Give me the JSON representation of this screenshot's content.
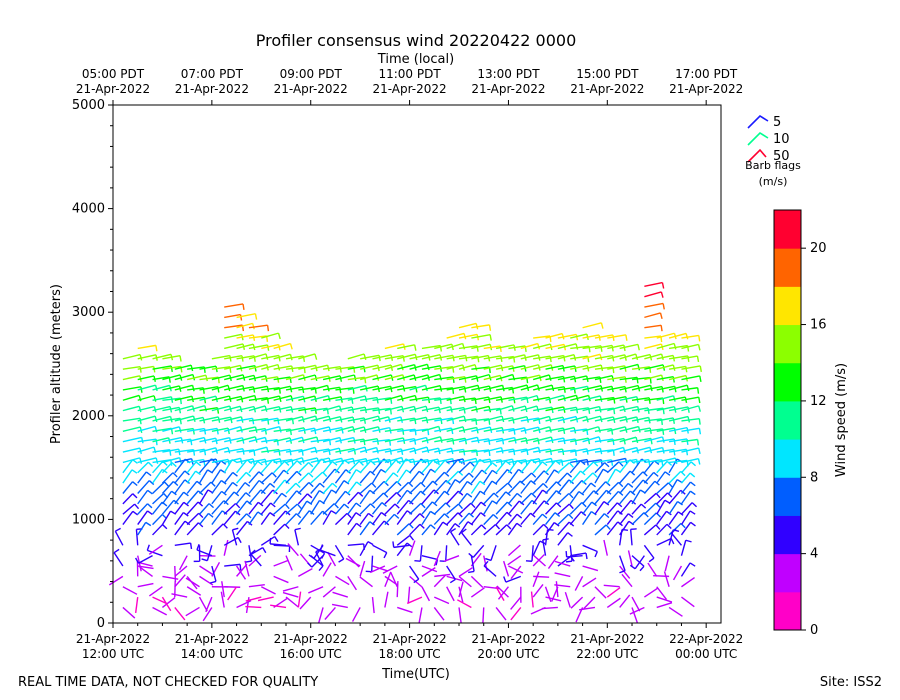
{
  "chart_data": {
    "type": "wind-barb-profile",
    "title": "Profiler consensus wind 20220422 0000",
    "top_axis_label": "Time (local)",
    "xlabel": "Time(UTC)",
    "ylabel": "Profiler altitude (meters)",
    "ylim": [
      0,
      5000
    ],
    "xlim_hours_utc": [
      12.0,
      24.3
    ],
    "y_ticks": [
      0,
      1000,
      2000,
      3000,
      4000,
      5000
    ],
    "y_tick_labels": [
      "0",
      "1000",
      "2000",
      "3000",
      "4000",
      "5000"
    ],
    "bottom_ticks": [
      {
        "hour": 12,
        "line1": "21-Apr-2022",
        "line2": "12:00 UTC"
      },
      {
        "hour": 14,
        "line1": "21-Apr-2022",
        "line2": "14:00 UTC"
      },
      {
        "hour": 16,
        "line1": "21-Apr-2022",
        "line2": "16:00 UTC"
      },
      {
        "hour": 18,
        "line1": "21-Apr-2022",
        "line2": "18:00 UTC"
      },
      {
        "hour": 20,
        "line1": "21-Apr-2022",
        "line2": "20:00 UTC"
      },
      {
        "hour": 22,
        "line1": "21-Apr-2022",
        "line2": "22:00 UTC"
      },
      {
        "hour": 24,
        "line1": "22-Apr-2022",
        "line2": "00:00 UTC"
      }
    ],
    "top_ticks": [
      {
        "hour": 12,
        "line1": "05:00 PDT",
        "line2": "21-Apr-2022"
      },
      {
        "hour": 14,
        "line1": "07:00 PDT",
        "line2": "21-Apr-2022"
      },
      {
        "hour": 16,
        "line1": "09:00 PDT",
        "line2": "21-Apr-2022"
      },
      {
        "hour": 18,
        "line1": "11:00 PDT",
        "line2": "21-Apr-2022"
      },
      {
        "hour": 20,
        "line1": "13:00 PDT",
        "line2": "21-Apr-2022"
      },
      {
        "hour": 22,
        "line1": "15:00 PDT",
        "line2": "21-Apr-2022"
      },
      {
        "hour": 24,
        "line1": "17:00 PDT",
        "line2": "21-Apr-2022"
      }
    ],
    "colorbar": {
      "label": "Wind speed (m/s)",
      "range": [
        0,
        22
      ],
      "ticks": [
        0,
        4,
        8,
        12,
        16,
        20
      ],
      "tick_labels": [
        "0",
        "4",
        "8",
        "12",
        "16",
        "20"
      ],
      "colors": [
        "#ff00c8",
        "#c000ff",
        "#3000ff",
        "#005eff",
        "#00e6ff",
        "#00ff90",
        "#00ff00",
        "#8cff00",
        "#ffe600",
        "#ff6400",
        "#ff0030"
      ]
    },
    "barb_legend": {
      "title_line1": "Barb flags",
      "title_line2": "(m/s)",
      "items": [
        {
          "label": "5",
          "color": "#1a1aff"
        },
        {
          "label": "10",
          "color": "#00ff90"
        },
        {
          "label": "50",
          "color": "#ff0030"
        }
      ]
    },
    "profile_times_hours_utc": [
      12.2,
      12.5,
      12.8,
      13.0,
      13.25,
      13.5,
      13.75,
      14.0,
      14.25,
      14.5,
      14.75,
      15.0,
      15.25,
      15.5,
      15.75,
      16.0,
      16.25,
      16.5,
      16.75,
      17.0,
      17.25,
      17.5,
      17.75,
      18.0,
      18.25,
      18.5,
      18.75,
      19.0,
      19.25,
      19.5,
      19.75,
      20.0,
      20.25,
      20.5,
      20.75,
      21.0,
      21.25,
      21.5,
      21.75,
      22.0,
      22.25,
      22.5,
      22.75,
      23.0,
      23.25,
      23.5
    ],
    "profile_top_altitudes_m": [
      2600,
      2650,
      2600,
      2600,
      2500,
      2450,
      2500,
      2600,
      3050,
      2950,
      2900,
      2750,
      2650,
      2600,
      2550,
      2500,
      2450,
      2500,
      2550,
      2600,
      2600,
      2650,
      2700,
      2600,
      2650,
      2700,
      2750,
      2850,
      2900,
      2700,
      2700,
      2650,
      2700,
      2750,
      2800,
      2800,
      2800,
      2850,
      2800,
      2750,
      2700,
      2550,
      3300,
      2800,
      2800,
      2800
    ],
    "profile_speed_model_knots": {
      "altitudes_m": [
        0,
        400,
        800,
        1200,
        1600,
        2000,
        2400,
        2800,
        3300
      ],
      "speeds_ms": [
        2,
        3,
        5,
        7,
        9,
        11,
        14,
        17,
        21
      ]
    }
  },
  "footer": {
    "left": "REAL TIME DATA, NOT CHECKED FOR QUALITY",
    "right": "Site: ISS2"
  }
}
